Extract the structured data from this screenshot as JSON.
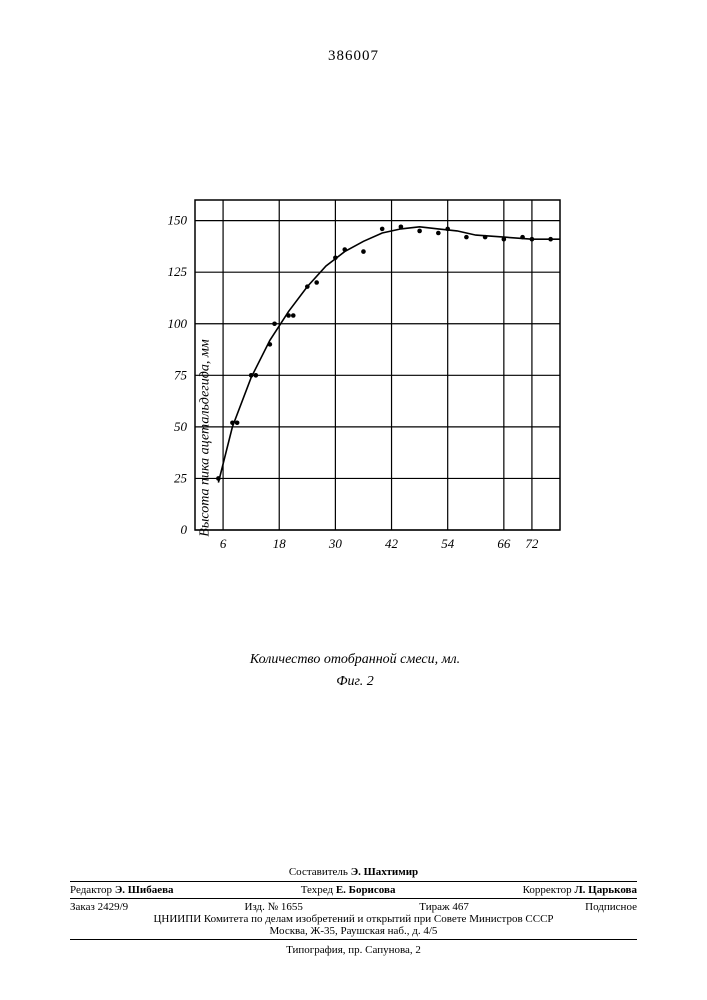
{
  "doc_number": "386007",
  "chart": {
    "type": "scatter-line",
    "xlabel": "Количество отобранной смеси, мл.",
    "ylabel": "Высота пика ацетальдегида, мм",
    "caption": "Фиг. 2",
    "xlim": [
      0,
      78
    ],
    "ylim": [
      0,
      160
    ],
    "xticks": [
      6,
      18,
      30,
      42,
      54,
      66,
      72
    ],
    "yticks": [
      0,
      25,
      50,
      75,
      100,
      125,
      150
    ],
    "frame_color": "#000000",
    "grid_color": "#000000",
    "grid_width": 1.2,
    "background_color": "#ffffff",
    "tick_fontsize": 13,
    "label_fontsize": 14,
    "marker_color": "#000000",
    "marker_radius": 2.3,
    "line_color": "#000000",
    "line_width": 1.6,
    "points": [
      {
        "x": 5,
        "y": 25
      },
      {
        "x": 8,
        "y": 52
      },
      {
        "x": 9,
        "y": 52
      },
      {
        "x": 12,
        "y": 75
      },
      {
        "x": 13,
        "y": 75
      },
      {
        "x": 16,
        "y": 90
      },
      {
        "x": 17,
        "y": 100
      },
      {
        "x": 20,
        "y": 104
      },
      {
        "x": 21,
        "y": 104
      },
      {
        "x": 24,
        "y": 118
      },
      {
        "x": 26,
        "y": 120
      },
      {
        "x": 30,
        "y": 132
      },
      {
        "x": 32,
        "y": 136
      },
      {
        "x": 36,
        "y": 135
      },
      {
        "x": 40,
        "y": 146
      },
      {
        "x": 44,
        "y": 147
      },
      {
        "x": 48,
        "y": 145
      },
      {
        "x": 52,
        "y": 144
      },
      {
        "x": 54,
        "y": 146
      },
      {
        "x": 58,
        "y": 142
      },
      {
        "x": 62,
        "y": 142
      },
      {
        "x": 66,
        "y": 141
      },
      {
        "x": 70,
        "y": 142
      },
      {
        "x": 72,
        "y": 141
      },
      {
        "x": 76,
        "y": 141
      }
    ],
    "curve": [
      {
        "x": 5,
        "y": 23
      },
      {
        "x": 8,
        "y": 50
      },
      {
        "x": 12,
        "y": 74
      },
      {
        "x": 16,
        "y": 92
      },
      {
        "x": 20,
        "y": 106
      },
      {
        "x": 24,
        "y": 118
      },
      {
        "x": 28,
        "y": 128
      },
      {
        "x": 32,
        "y": 135
      },
      {
        "x": 36,
        "y": 140
      },
      {
        "x": 40,
        "y": 144
      },
      {
        "x": 44,
        "y": 146
      },
      {
        "x": 48,
        "y": 147
      },
      {
        "x": 52,
        "y": 146
      },
      {
        "x": 56,
        "y": 145
      },
      {
        "x": 60,
        "y": 143
      },
      {
        "x": 66,
        "y": 142
      },
      {
        "x": 72,
        "y": 141
      },
      {
        "x": 78,
        "y": 141
      }
    ]
  },
  "footer": {
    "compiler_label": "Составитель",
    "compiler": "Э. Шахтимир",
    "editor_label": "Редактор",
    "editor": "Э. Шибаева",
    "tech_editor_label": "Техред",
    "tech_editor": "Е. Борисова",
    "corrector_label": "Корректор",
    "corrector": "Л. Царькова",
    "order_label": "Заказ",
    "order": "2429/9",
    "izd_label": "Изд.",
    "izd": "№ 1655",
    "tirazh_label": "Тираж",
    "tirazh": "467",
    "signed": "Подписное",
    "org": "ЦНИИПИ Комитета по делам изобретений и открытий при Совете Министров СССР",
    "address": "Москва, Ж-35, Раушская наб., д. 4/5",
    "typography": "Типография, пр. Сапунова, 2"
  }
}
